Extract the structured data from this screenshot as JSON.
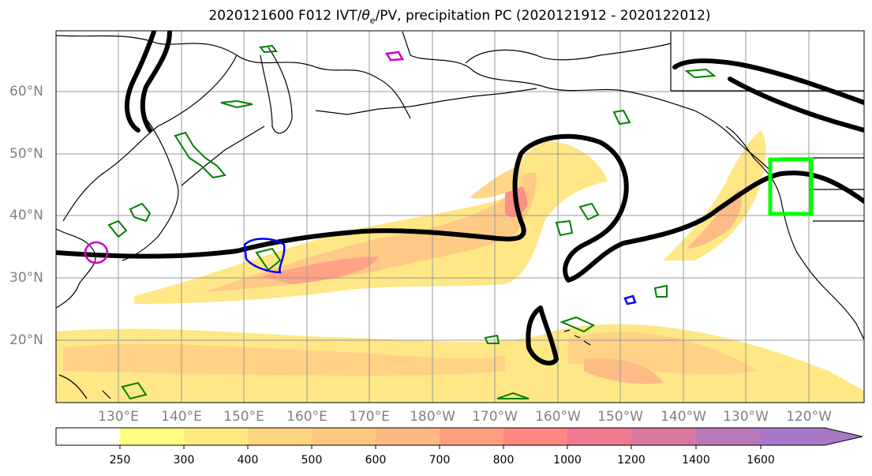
{
  "title": {
    "prefix": "2020121600 F012 IVT/",
    "theta": "θ",
    "theta_sub": "e",
    "suffix": "/PV, precipitation PC (2020121912 - 2020122012)"
  },
  "map": {
    "lat_labels": [
      "60°N",
      "50°N",
      "40°N",
      "30°N",
      "20°N"
    ],
    "lon_labels": [
      "130°E",
      "140°E",
      "150°E",
      "160°E",
      "170°E",
      "180°W",
      "170°W",
      "160°W",
      "150°W",
      "140°W",
      "130°W",
      "120°W"
    ],
    "grid": true,
    "colors": {
      "coastline": "#000000",
      "pv_contour": "#000000",
      "precip_contour": "#008000",
      "theta_contour_blue": "#0000ff",
      "theta_contour_magenta": "#cc00cc",
      "highlight_box": "#00ff00"
    }
  },
  "colorbar": {
    "ticks": [
      "250",
      "300",
      "400",
      "500",
      "600",
      "700",
      "800",
      "1000",
      "1200",
      "1400",
      "1600"
    ],
    "colors": [
      "#ffffff",
      "#ffff80",
      "#ffea80",
      "#ffd580",
      "#ffc880",
      "#ffb880",
      "#ff9f80",
      "#ff8880",
      "#f07890",
      "#d878a0",
      "#b878b8",
      "#a878c8"
    ],
    "extend": "max"
  }
}
